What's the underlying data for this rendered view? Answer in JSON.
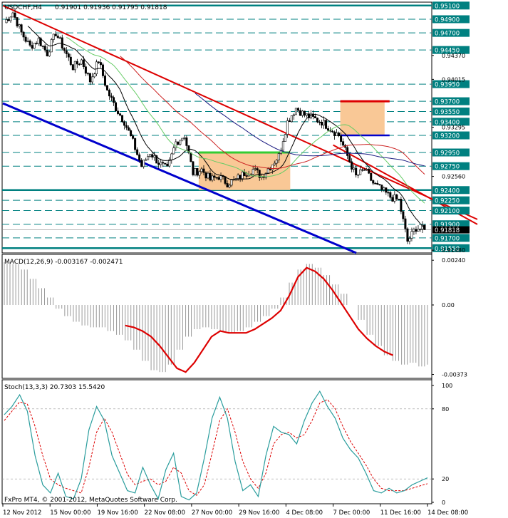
{
  "header": {
    "symbol_tf": "USDCHF,H4",
    "ohlc": "0.91901 0.91936 0.91795 0.91818"
  },
  "footer": {
    "copyright": "FxPro MT4, © 2001-2012, MetaQuotes Software Corp."
  },
  "colors": {
    "background": "#ffffff",
    "frame": "#000000",
    "bull_candle": "#000000",
    "bear_candle": "#000000",
    "level_line": "#008080",
    "price_tag": "#008080",
    "resistance_channel": "#dd0000",
    "support_channel": "#0000cc",
    "box_fill": "#f9c896",
    "box_top_green": "#33cc33",
    "box_top_red": "#dd0000",
    "ma_black": "#000000",
    "ma_green": "#66cc66",
    "ma_red": "#cc2222",
    "ma_navy": "#1a1a80",
    "macd_signal": "#dd0000",
    "macd_hist": "#999999",
    "stoch_main": "#2a9d9d",
    "stoch_signal": "#dd0000"
  },
  "chart_data": [
    {
      "type": "candlestick",
      "pane": "main",
      "symbol": "USDCHF",
      "timeframe": "H4",
      "ylim": [
        0.9148,
        0.9515
      ],
      "price_levels": [
        {
          "value": 0.951,
          "label": "0.95100",
          "emphasis": "bold"
        },
        {
          "value": 0.949,
          "label": "0.94900",
          "emphasis": "dashed"
        },
        {
          "value": 0.947,
          "label": "0.94700",
          "emphasis": "dashed"
        },
        {
          "value": 0.9445,
          "label": "0.94450",
          "emphasis": "dashed"
        },
        {
          "value": 0.9395,
          "label": "0.93950",
          "emphasis": "dashed"
        },
        {
          "value": 0.937,
          "label": "0.93700",
          "emphasis": "dashed"
        },
        {
          "value": 0.9355,
          "label": "0.93550",
          "emphasis": "dashed"
        },
        {
          "value": 0.934,
          "label": "0.93400",
          "emphasis": "dashed"
        },
        {
          "value": 0.932,
          "label": "0.93200",
          "emphasis": "dashed"
        },
        {
          "value": 0.9295,
          "label": "0.92950",
          "emphasis": "dashed"
        },
        {
          "value": 0.9275,
          "label": "0.92750",
          "emphasis": "dashed"
        },
        {
          "value": 0.924,
          "label": "0.92400",
          "emphasis": "bold"
        },
        {
          "value": 0.9225,
          "label": "0.92250",
          "emphasis": "dashed"
        },
        {
          "value": 0.921,
          "label": "0.92100",
          "emphasis": "dashed"
        },
        {
          "value": 0.919,
          "label": "0.91900",
          "emphasis": "dashed"
        },
        {
          "value": 0.91818,
          "label": "0.91818",
          "emphasis": "current"
        },
        {
          "value": 0.917,
          "label": "0.91700",
          "emphasis": "dashed"
        },
        {
          "value": 0.9155,
          "label": "0.91550",
          "emphasis": "bold"
        }
      ],
      "axis_ticks": [
        {
          "value": 0.9437,
          "label": "0.94370"
        },
        {
          "value": 0.9402,
          "label": "0.94015"
        },
        {
          "value": 0.9332,
          "label": "0.93295"
        },
        {
          "value": 0.926,
          "label": "0.92560"
        },
        {
          "value": 0.9152,
          "label": "0.91480"
        }
      ],
      "x_ticks": [
        "12 Nov 2012",
        "15 Nov 00:00",
        "19 Nov 16:00",
        "22 Nov 08:00",
        "27 Nov 00:00",
        "29 Nov 16:00",
        "4 Dec 08:00",
        "7 Dec 00:00",
        "11 Dec 16:00",
        "14 Dec 08:00"
      ],
      "channels": [
        {
          "color": "red",
          "from": {
            "time": "12 Nov 2012",
            "price": 0.951
          },
          "to": {
            "time": "14 Dec 08:00",
            "price": 0.923
          }
        },
        {
          "color": "blue",
          "from": {
            "time": "12 Nov 2012",
            "price": 0.9367
          },
          "to": {
            "time": "11 Dec 16:00",
            "price": 0.9148
          }
        },
        {
          "color": "red",
          "from": {
            "time": "7 Dec 00:00",
            "price": 0.9306
          },
          "to": {
            "time": "14 Dec 08:00",
            "price": 0.923
          }
        }
      ],
      "zones": [
        {
          "from_time": "27 Nov 00:00",
          "to_time": "4 Dec 08:00",
          "top": 0.9295,
          "bottom": 0.924,
          "top_color": "green"
        },
        {
          "from_time": "7 Dec 00:00",
          "to_time": "11 Dec 16:00",
          "top": 0.937,
          "bottom": 0.932,
          "top_color": "red"
        }
      ],
      "close_path": [
        0.9485,
        0.95,
        0.947,
        0.945,
        0.946,
        0.944,
        0.947,
        0.9445,
        0.942,
        0.943,
        0.94,
        0.943,
        0.9385,
        0.936,
        0.934,
        0.931,
        0.9275,
        0.9295,
        0.928,
        0.927,
        0.931,
        0.932,
        0.9265,
        0.927,
        0.9255,
        0.926,
        0.925,
        0.9255,
        0.9265,
        0.927,
        0.926,
        0.9275,
        0.929,
        0.934,
        0.936,
        0.935,
        0.9345,
        0.934,
        0.933,
        0.932,
        0.929,
        0.926,
        0.927,
        0.925,
        0.924,
        0.923,
        0.9225,
        0.9165,
        0.9185,
        0.9182
      ]
    },
    {
      "type": "line",
      "pane": "MACD",
      "label": "MACD(12,26,9) -0.003167 -0.002471",
      "ylim": [
        -0.0039,
        0.0026
      ],
      "axis_ticks": [
        {
          "value": 0.0024,
          "label": "0.00240"
        },
        {
          "value": 0.0,
          "label": "0.00"
        },
        {
          "value": -0.00373,
          "label": "-0.00373"
        }
      ],
      "histogram_values": [
        0.0023,
        0.0022,
        0.0019,
        0.0014,
        0.0009,
        0.0004,
        -0.0002,
        -0.0006,
        -0.0009,
        -0.0011,
        -0.0012,
        -0.0012,
        -0.0014,
        -0.0016,
        -0.0019,
        -0.0024,
        -0.003,
        -0.0035,
        -0.0036,
        -0.0032,
        -0.0024,
        -0.0017,
        -0.0013,
        -0.0012,
        -0.0013,
        -0.0014,
        -0.0015,
        -0.0014,
        -0.0012,
        -0.0009,
        -0.0006,
        -0.0002,
        0.0004,
        0.0012,
        0.0019,
        0.0022,
        0.002,
        0.0016,
        0.0011,
        0.0006,
        0.0,
        -0.0008,
        -0.0016,
        -0.0022,
        -0.0027,
        -0.003,
        -0.0032,
        -0.0031,
        -0.0033,
        -0.0032
      ],
      "signal_values": [
        null,
        null,
        null,
        null,
        null,
        null,
        null,
        null,
        null,
        null,
        null,
        null,
        null,
        null,
        -0.0011,
        -0.0012,
        -0.0014,
        -0.0017,
        -0.0022,
        -0.0028,
        -0.0034,
        -0.0036,
        -0.0031,
        -0.0024,
        -0.0017,
        -0.0014,
        -0.0015,
        -0.0015,
        -0.0015,
        -0.0013,
        -0.001,
        -0.0007,
        -0.0003,
        0.0005,
        0.0015,
        0.002,
        0.0018,
        0.0014,
        0.0008,
        0.0001,
        -0.0006,
        -0.0013,
        -0.0018,
        -0.0022,
        -0.0025,
        -0.0027,
        null,
        null,
        null,
        null
      ]
    },
    {
      "type": "line",
      "pane": "Stochastic",
      "label": "Stoch(13,3,3) 20.7303 15.5420",
      "ylim": [
        0,
        100
      ],
      "axis_ticks": [
        {
          "value": 100,
          "label": "100"
        },
        {
          "value": 80,
          "label": "80"
        },
        {
          "value": 20,
          "label": "20"
        },
        {
          "value": 0,
          "label": "0"
        }
      ],
      "main_values": [
        75,
        82,
        92,
        78,
        40,
        15,
        8,
        25,
        5,
        3,
        20,
        62,
        82,
        70,
        40,
        25,
        10,
        8,
        30,
        15,
        3,
        28,
        42,
        5,
        2,
        8,
        38,
        72,
        90,
        72,
        35,
        10,
        15,
        5,
        40,
        65,
        60,
        58,
        50,
        70,
        85,
        95,
        82,
        72,
        55,
        45,
        38,
        25,
        10,
        8,
        12,
        8,
        10,
        15,
        18,
        21
      ],
      "signal_values": [
        70,
        78,
        86,
        84,
        65,
        40,
        20,
        15,
        12,
        10,
        8,
        30,
        60,
        72,
        60,
        42,
        24,
        15,
        18,
        20,
        15,
        18,
        30,
        25,
        10,
        6,
        15,
        42,
        70,
        80,
        60,
        35,
        20,
        12,
        25,
        50,
        58,
        60,
        55,
        58,
        70,
        85,
        88,
        80,
        65,
        52,
        42,
        32,
        20,
        12,
        10,
        10,
        10,
        12,
        14,
        16
      ]
    }
  ]
}
